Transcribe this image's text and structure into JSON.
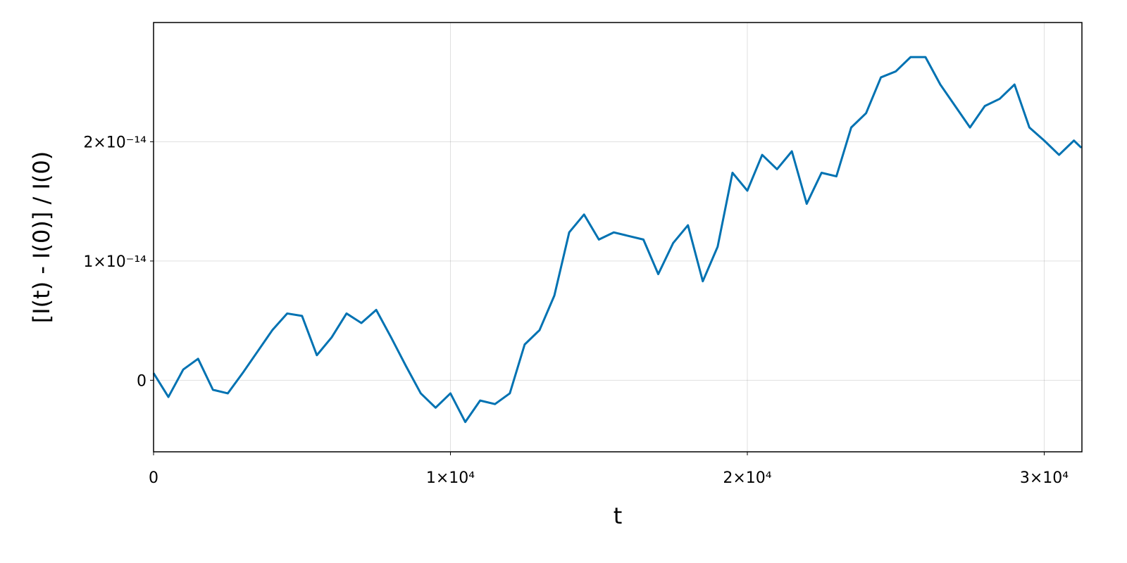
{
  "chart_data": {
    "type": "line",
    "x_label": "t",
    "y_label": "[I(t) - I(0)] / I(0)",
    "x": [
      0,
      500,
      1000,
      1500,
      2000,
      2500,
      3000,
      3500,
      4000,
      4500,
      5000,
      5500,
      6000,
      6500,
      7000,
      7500,
      8000,
      8500,
      9000,
      9500,
      10000,
      10500,
      11000,
      11500,
      12000,
      12500,
      13000,
      13500,
      14000,
      14500,
      15000,
      15500,
      16000,
      16500,
      17000,
      17500,
      18000,
      18500,
      19000,
      19500,
      20000,
      20500,
      21000,
      21500,
      22000,
      22500,
      23000,
      23500,
      24000,
      24500,
      25000,
      25500,
      26000,
      26500,
      27000,
      27500,
      28000,
      28500,
      29000,
      29500,
      30000,
      30500,
      31000,
      31250
    ],
    "series": [
      {
        "name": "I",
        "color": "#0072b2",
        "values": [
          6e-16,
          -1.4e-15,
          9e-16,
          1.8e-15,
          -8e-16,
          -1.1e-15,
          6e-16,
          2.4e-15,
          4.2e-15,
          5.6e-15,
          5.4e-15,
          2.1e-15,
          3.6e-15,
          5.6e-15,
          4.8e-15,
          5.9e-15,
          3.6e-15,
          1.2e-15,
          -1.1e-15,
          -2.3e-15,
          -1.1e-15,
          -3.5e-15,
          -1.7e-15,
          -2e-15,
          -1.1e-15,
          3e-15,
          4.2e-15,
          7.1e-15,
          1.24e-14,
          1.39e-14,
          1.18e-14,
          1.24e-14,
          1.21e-14,
          1.18e-14,
          8.9e-15,
          1.15e-14,
          1.3e-14,
          8.3e-15,
          1.12e-14,
          1.74e-14,
          1.59e-14,
          1.89e-14,
          1.77e-14,
          1.92e-14,
          1.48e-14,
          1.74e-14,
          1.71e-14,
          2.12e-14,
          2.24e-14,
          2.54e-14,
          2.59e-14,
          2.71e-14,
          2.71e-14,
          2.48e-14,
          2.3e-14,
          2.12e-14,
          2.3e-14,
          2.36e-14,
          2.48e-14,
          2.12e-14,
          2.01e-14,
          1.89e-14,
          2.01e-14,
          1.95e-14
        ]
      }
    ],
    "xlim": [
      0,
      31270
    ],
    "ylim": [
      -6e-15,
      3e-14
    ],
    "xticks": [
      0,
      {
        "value": 10000,
        "label": "1×10⁴"
      },
      {
        "value": 20000,
        "label": "2×10⁴"
      },
      {
        "value": 30000,
        "label": "3×10⁴"
      }
    ],
    "yticks": [
      0,
      {
        "value": 1e-14,
        "label": "1×10⁻¹⁴"
      },
      {
        "value": 2e-14,
        "label": "2×10⁻¹⁴"
      }
    ],
    "grid": true
  }
}
